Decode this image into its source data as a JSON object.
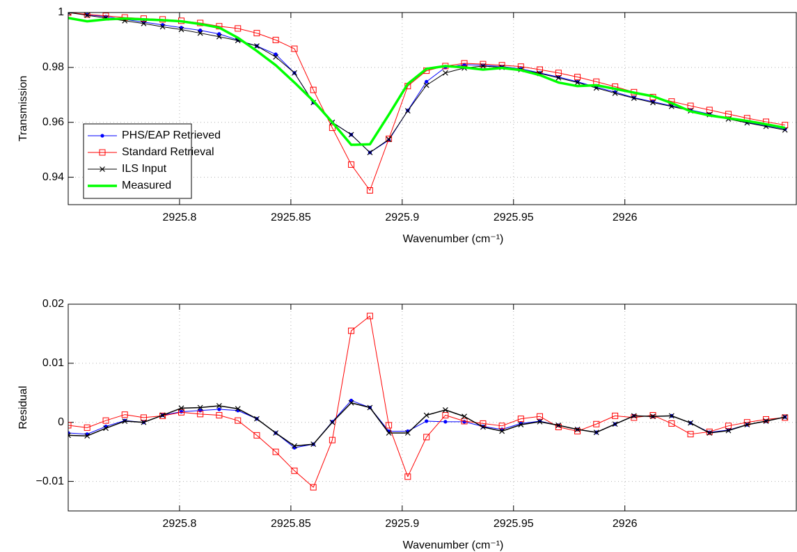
{
  "chart_data": [
    {
      "type": "line",
      "y_label": "Transmission",
      "x_label": "Wavenumber (cm⁻¹)",
      "xlim": [
        2925.75,
        2926.077
      ],
      "xticks": [
        2925.8,
        2925.85,
        2925.9,
        2925.95,
        2926
      ],
      "ylim": [
        0.93,
        1
      ],
      "yticks": [
        0.94,
        0.96,
        0.98,
        1
      ],
      "grid": true,
      "legend": "lower left",
      "x": [
        2925.75,
        2925.7585,
        2925.7669,
        2925.7754,
        2925.7839,
        2925.7924,
        2925.8008,
        2925.8093,
        2925.8178,
        2925.8262,
        2925.8347,
        2925.8432,
        2925.8516,
        2925.8601,
        2925.8686,
        2925.8771,
        2925.8855,
        2925.894,
        2925.9025,
        2925.9109,
        2925.9194,
        2925.9279,
        2925.9363,
        2925.9448,
        2925.9533,
        2925.9618,
        2925.9702,
        2925.9787,
        2925.9872,
        2925.9956,
        2926.0041,
        2926.0126,
        2926.021,
        2926.0295,
        2926.038,
        2926.0465,
        2926.0549,
        2926.0634,
        2926.0719
      ],
      "series": [
        {
          "name": "PHS/EAP Retrieved",
          "color": "#0000ff",
          "marker": "dot",
          "linewidth": 1,
          "values": [
            1.0,
            0.9992,
            0.9985,
            0.9975,
            0.9965,
            0.9955,
            0.9945,
            0.9935,
            0.9922,
            0.99,
            0.9878,
            0.9848,
            0.978,
            0.9672,
            0.96,
            0.9555,
            0.949,
            0.9535,
            0.9643,
            0.9748,
            0.98,
            0.981,
            0.9808,
            0.9803,
            0.9795,
            0.978,
            0.9765,
            0.9748,
            0.9728,
            0.971,
            0.969,
            0.9675,
            0.966,
            0.9645,
            0.963,
            0.9615,
            0.96,
            0.9588,
            0.9575
          ]
        },
        {
          "name": "Standard Retrieval",
          "color": "#ff0000",
          "marker": "square",
          "linewidth": 1,
          "values": [
            1.0,
            0.9993,
            0.9988,
            0.9982,
            0.9978,
            0.9975,
            0.997,
            0.9962,
            0.995,
            0.9942,
            0.9925,
            0.99,
            0.9868,
            0.9718,
            0.958,
            0.9446,
            0.9352,
            0.954,
            0.9732,
            0.9788,
            0.9805,
            0.9815,
            0.9812,
            0.9808,
            0.9803,
            0.9792,
            0.978,
            0.9765,
            0.9748,
            0.973,
            0.971,
            0.9692,
            0.9676,
            0.966,
            0.9645,
            0.963,
            0.9615,
            0.9602,
            0.959
          ]
        },
        {
          "name": "ILS Input",
          "color": "#000000",
          "marker": "x",
          "linewidth": 1,
          "values": [
            1.0,
            0.999,
            0.998,
            0.997,
            0.996,
            0.9948,
            0.9938,
            0.9925,
            0.9912,
            0.9898,
            0.9878,
            0.9838,
            0.978,
            0.9672,
            0.96,
            0.9555,
            0.949,
            0.9538,
            0.9642,
            0.9735,
            0.978,
            0.9798,
            0.9805,
            0.98,
            0.9792,
            0.9778,
            0.9762,
            0.9745,
            0.9725,
            0.9706,
            0.9688,
            0.9672,
            0.9658,
            0.9642,
            0.9628,
            0.9612,
            0.9598,
            0.9585,
            0.9572
          ]
        },
        {
          "name": "Measured",
          "color": "#00ff00",
          "marker": "none",
          "linewidth": 3.5,
          "values": [
            0.998,
            0.9968,
            0.9975,
            0.9978,
            0.9975,
            0.9972,
            0.9968,
            0.9958,
            0.9945,
            0.9908,
            0.986,
            0.9808,
            0.9745,
            0.9678,
            0.96,
            0.9518,
            0.952,
            0.9628,
            0.974,
            0.9795,
            0.9805,
            0.98,
            0.9792,
            0.9798,
            0.979,
            0.9772,
            0.9745,
            0.9732,
            0.9735,
            0.9722,
            0.9708,
            0.9695,
            0.967,
            0.964,
            0.9625,
            0.9615,
            0.9605,
            0.9593,
            0.958
          ]
        }
      ]
    },
    {
      "type": "line",
      "y_label": "Residual",
      "x_label": "Wavenumber (cm⁻¹)",
      "xlim": [
        2925.75,
        2926.077
      ],
      "xticks": [
        2925.8,
        2925.85,
        2925.9,
        2925.95,
        2926
      ],
      "ylim": [
        -0.015,
        0.02
      ],
      "yticks": [
        {
          "value": -0.01,
          "label": "−0.01"
        },
        0,
        0.01,
        0.02
      ],
      "grid": true,
      "x": [
        2925.75,
        2925.7585,
        2925.7669,
        2925.7754,
        2925.7839,
        2925.7924,
        2925.8008,
        2925.8093,
        2925.8178,
        2925.8262,
        2925.8347,
        2925.8432,
        2925.8516,
        2925.8601,
        2925.8686,
        2925.8771,
        2925.8855,
        2925.894,
        2925.9025,
        2925.9109,
        2925.9194,
        2925.9279,
        2925.9363,
        2925.9448,
        2925.9533,
        2925.9618,
        2925.9702,
        2925.9787,
        2925.9872,
        2925.9956,
        2926.0041,
        2926.0126,
        2926.021,
        2926.0295,
        2926.038,
        2926.0465,
        2926.0549,
        2926.0634,
        2926.0719
      ],
      "series": [
        {
          "color": "#0000ff",
          "marker": "dot",
          "linewidth": 1,
          "values": [
            -0.0018,
            -0.002,
            -0.0007,
            0.0003,
            0,
            0.0012,
            0.0018,
            0.002,
            0.0022,
            0.002,
            0.0006,
            -0.0018,
            -0.0043,
            -0.0037,
            0.0001,
            0.0037,
            0.0025,
            -0.0015,
            -0.0015,
            0.0002,
            0.0001,
            0.0001,
            -0.0007,
            -0.0012,
            -0.0002,
            0.0002,
            -0.0005,
            -0.0012,
            -0.0017,
            -0.0003,
            0.0011,
            0.001,
            0.0011,
            -0.0001,
            -0.0017,
            -0.0013,
            -0.0004,
            0.0002,
            0.0009
          ]
        },
        {
          "color": "#ff0000",
          "marker": "square",
          "linewidth": 1,
          "values": [
            -0.0005,
            -0.0009,
            0.0003,
            0.0013,
            0.0008,
            0.0011,
            0.0017,
            0.0014,
            0.0012,
            0.0003,
            -0.0022,
            -0.005,
            -0.0082,
            -0.011,
            -0.003,
            0.0155,
            0.018,
            -0.0005,
            -0.0092,
            -0.0025,
            0.0012,
            0.0002,
            -0.0002,
            -0.0006,
            0.0006,
            0.001,
            -0.0008,
            -0.0015,
            -0.0003,
            0.0011,
            0.0008,
            0.0012,
            -0.0002,
            -0.002,
            -0.0016,
            -0.0006,
            0,
            0.0005,
            0.0008
          ]
        },
        {
          "color": "#000000",
          "marker": "x",
          "linewidth": 1.5,
          "values": [
            -0.0022,
            -0.0023,
            -0.001,
            0.0002,
            0,
            0.0012,
            0.0024,
            0.0025,
            0.0028,
            0.0023,
            0.0006,
            -0.0018,
            -0.004,
            -0.0037,
            0,
            0.0033,
            0.0025,
            -0.0018,
            -0.0018,
            0.0012,
            0.0021,
            0.001,
            -0.0008,
            -0.0015,
            -0.0004,
            0.0001,
            -0.0005,
            -0.0012,
            -0.0017,
            -0.0003,
            0.0011,
            0.001,
            0.0011,
            -0.0001,
            -0.0018,
            -0.0014,
            -0.0004,
            0.0002,
            0.0009
          ]
        }
      ]
    }
  ]
}
